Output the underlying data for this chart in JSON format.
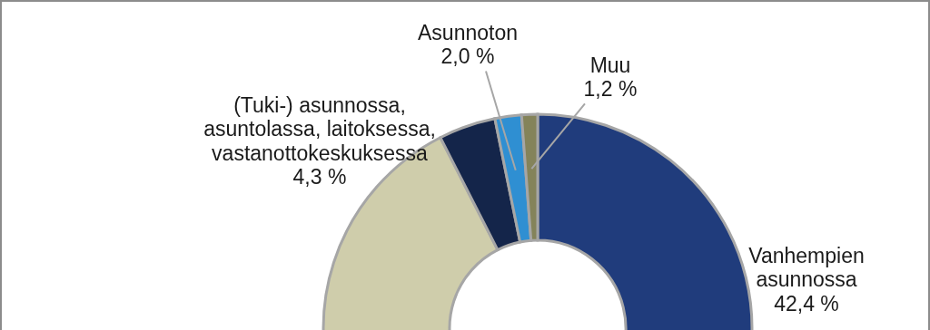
{
  "chart_data": {
    "type": "donut",
    "categories": [
      "Vanhempien asunnossa",
      null,
      "(Tuki-) asunnossa, asuntolassa, laitoksessa, vastanottokeskuksessa",
      "Asunnoton",
      "Muu"
    ],
    "values": [
      42.4,
      50.1,
      4.3,
      2.0,
      1.2
    ],
    "value_labels": [
      "42,4 %",
      null,
      "4,3 %",
      "2,0 %",
      "1,2 %"
    ],
    "colors": [
      "#203c7c",
      "#cfcdab",
      "#14254a",
      "#2f8fd2",
      "#84835a"
    ]
  }
}
